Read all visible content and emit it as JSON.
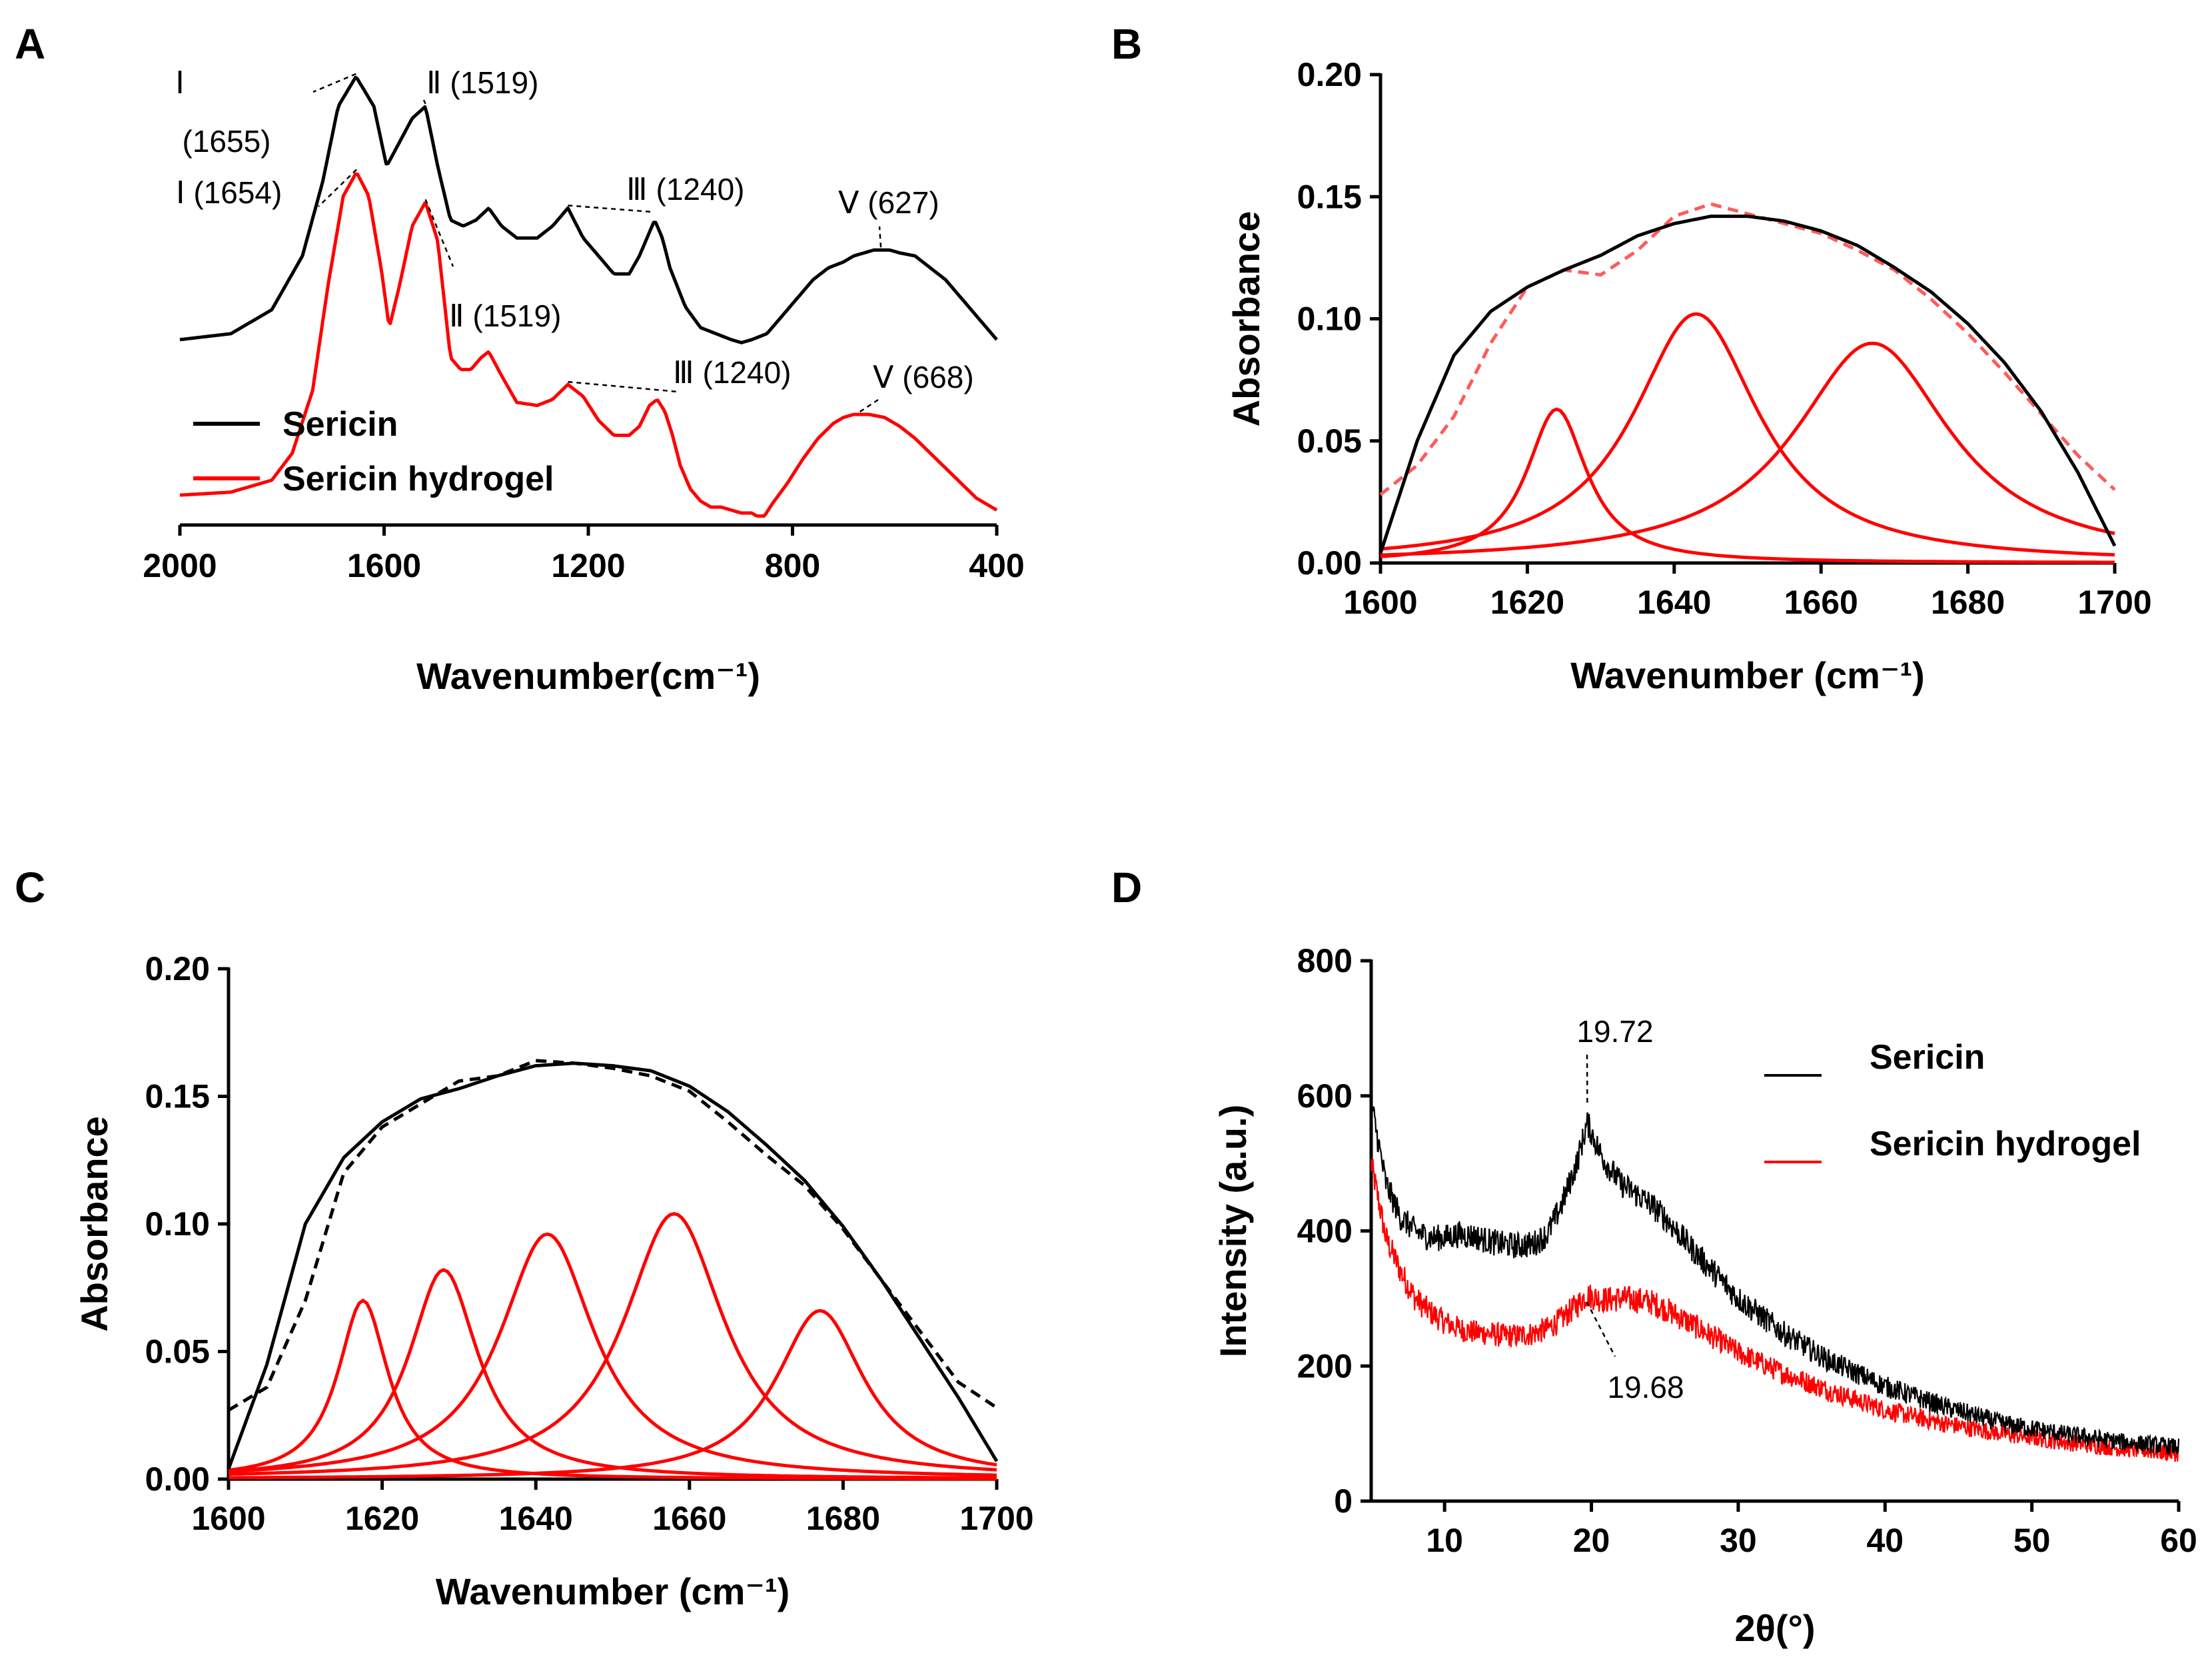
{
  "chart_data": [
    {
      "panel": "A",
      "type": "line",
      "xlabel": "Wavenumber(cm⁻¹)",
      "ylabel": "",
      "xlim": [
        2000,
        400
      ],
      "ylim": [
        0,
        1.6
      ],
      "xticks": [
        2000,
        1600,
        1200,
        800,
        400
      ],
      "xtick_labels": [
        "2000",
        "1600",
        "1200",
        "800",
        "400"
      ],
      "legend": [
        "Sericin",
        "Sericin hydrogel"
      ],
      "legend_position": "bottom-left",
      "series": [
        {
          "name": "Sericin",
          "color": "#000000",
          "x": [
            2000,
            1900,
            1820,
            1760,
            1720,
            1690,
            1655,
            1620,
            1595,
            1570,
            1545,
            1519,
            1495,
            1470,
            1445,
            1420,
            1395,
            1370,
            1340,
            1300,
            1270,
            1240,
            1210,
            1180,
            1150,
            1120,
            1100,
            1080,
            1070,
            1055,
            1040,
            1010,
            980,
            950,
            920,
            900,
            880,
            850,
            820,
            790,
            760,
            730,
            700,
            680,
            660,
            640,
            627,
            610,
            590,
            560,
            530,
            500,
            470,
            440,
            420,
            400
          ],
          "y": [
            0.62,
            0.64,
            0.72,
            0.9,
            1.15,
            1.4,
            1.5,
            1.4,
            1.2,
            1.28,
            1.36,
            1.4,
            1.2,
            1.02,
            1.0,
            1.02,
            1.06,
            1.0,
            0.96,
            0.96,
            1.0,
            1.06,
            0.96,
            0.9,
            0.84,
            0.84,
            0.9,
            0.98,
            1.02,
            0.96,
            0.86,
            0.73,
            0.66,
            0.64,
            0.62,
            0.61,
            0.62,
            0.64,
            0.7,
            0.76,
            0.82,
            0.86,
            0.88,
            0.9,
            0.91,
            0.92,
            0.92,
            0.92,
            0.91,
            0.9,
            0.86,
            0.82,
            0.76,
            0.7,
            0.66,
            0.62
          ]
        },
        {
          "name": "Sericin hydrogel",
          "color": "#ff0000",
          "x": [
            2000,
            1900,
            1820,
            1780,
            1740,
            1710,
            1680,
            1654,
            1630,
            1605,
            1590,
            1570,
            1545,
            1519,
            1495,
            1470,
            1450,
            1430,
            1410,
            1395,
            1370,
            1340,
            1300,
            1270,
            1240,
            1210,
            1180,
            1150,
            1120,
            1100,
            1080,
            1065,
            1050,
            1035,
            1020,
            1000,
            980,
            960,
            940,
            920,
            900,
            880,
            870,
            855,
            840,
            810,
            780,
            750,
            720,
            700,
            680,
            668,
            650,
            620,
            590,
            560,
            530,
            500,
            470,
            440,
            400
          ],
          "y": [
            0.1,
            0.11,
            0.15,
            0.24,
            0.45,
            0.8,
            1.1,
            1.18,
            1.1,
            0.85,
            0.66,
            0.8,
            1.0,
            1.08,
            0.95,
            0.56,
            0.52,
            0.52,
            0.56,
            0.58,
            0.5,
            0.41,
            0.4,
            0.42,
            0.47,
            0.43,
            0.35,
            0.3,
            0.3,
            0.33,
            0.4,
            0.42,
            0.38,
            0.3,
            0.2,
            0.12,
            0.08,
            0.06,
            0.06,
            0.05,
            0.04,
            0.04,
            0.03,
            0.03,
            0.07,
            0.14,
            0.22,
            0.29,
            0.34,
            0.36,
            0.37,
            0.37,
            0.37,
            0.36,
            0.33,
            0.29,
            0.24,
            0.19,
            0.14,
            0.09,
            0.05
          ]
        }
      ],
      "annotations": [
        {
          "text": "Ⅰ",
          "x": 1655,
          "series": "Sericin"
        },
        {
          "text": "(1655)",
          "x": 1655,
          "series": "Sericin"
        },
        {
          "text": "Ⅱ (1519)",
          "x": 1519,
          "series": "Sericin"
        },
        {
          "text": "Ⅲ (1240)",
          "x": 1240,
          "series": "Sericin"
        },
        {
          "text": "Ⅴ (627)",
          "x": 627,
          "series": "Sericin"
        },
        {
          "text": "Ⅰ (1654)",
          "x": 1654,
          "series": "Sericin hydrogel"
        },
        {
          "text": "Ⅱ (1519)",
          "x": 1519,
          "series": "Sericin hydrogel"
        },
        {
          "text": "Ⅲ (1240)",
          "x": 1240,
          "series": "Sericin hydrogel"
        },
        {
          "text": "Ⅴ (668)",
          "x": 668,
          "series": "Sericin hydrogel"
        }
      ]
    },
    {
      "panel": "B",
      "type": "line",
      "xlabel": "Wavenumber (cm⁻¹)",
      "ylabel": "Absorbance",
      "xlim": [
        1600,
        1700
      ],
      "ylim": [
        0,
        0.2
      ],
      "xticks": [
        1600,
        1620,
        1640,
        1660,
        1680,
        1700
      ],
      "xtick_labels": [
        "1600",
        "1620",
        "1640",
        "1660",
        "1680",
        "1700"
      ],
      "yticks": [
        0,
        0.05,
        0.1,
        0.15,
        0.2
      ],
      "ytick_labels": [
        "0.00",
        "0.05",
        "0.10",
        "0.15",
        "0.20"
      ],
      "measured": {
        "name": "Measured spectrum",
        "color": "#000000",
        "x": [
          1600,
          1605,
          1610,
          1615,
          1620,
          1625,
          1630,
          1635,
          1640,
          1645,
          1650,
          1655,
          1660,
          1665,
          1670,
          1675,
          1680,
          1685,
          1690,
          1695,
          1700
        ],
        "y": [
          0.004,
          0.05,
          0.085,
          0.103,
          0.113,
          0.12,
          0.126,
          0.134,
          0.139,
          0.142,
          0.142,
          0.14,
          0.136,
          0.13,
          0.121,
          0.111,
          0.098,
          0.082,
          0.062,
          0.037,
          0.007
        ]
      },
      "fit_sum": {
        "name": "Fitted sum",
        "color": "#ff5a5a",
        "dashed": true,
        "x": [
          1600,
          1605,
          1610,
          1615,
          1620,
          1625,
          1630,
          1635,
          1640,
          1645,
          1650,
          1655,
          1660,
          1665,
          1670,
          1675,
          1680,
          1685,
          1690,
          1695,
          1700
        ],
        "y": [
          0.028,
          0.04,
          0.06,
          0.09,
          0.113,
          0.12,
          0.118,
          0.128,
          0.142,
          0.147,
          0.143,
          0.139,
          0.135,
          0.128,
          0.12,
          0.108,
          0.094,
          0.078,
          0.061,
          0.044,
          0.03
        ]
      },
      "components": [
        {
          "center": 1624,
          "height": 0.063,
          "hwhm": 5,
          "color": "#ff0000"
        },
        {
          "center": 1643,
          "height": 0.102,
          "hwhm": 10.5,
          "color": "#ff0000"
        },
        {
          "center": 1667,
          "height": 0.09,
          "hwhm": 13,
          "color": "#ff0000"
        }
      ]
    },
    {
      "panel": "C",
      "type": "line",
      "xlabel": "Wavenumber (cm⁻¹)",
      "ylabel": "Absorbance",
      "xlim": [
        1600,
        1700
      ],
      "ylim": [
        0,
        0.2
      ],
      "xticks": [
        1600,
        1620,
        1640,
        1660,
        1680,
        1700
      ],
      "xtick_labels": [
        "1600",
        "1620",
        "1640",
        "1660",
        "1680",
        "1700"
      ],
      "yticks": [
        0,
        0.05,
        0.1,
        0.15,
        0.2
      ],
      "ytick_labels": [
        "0.00",
        "0.05",
        "0.10",
        "0.15",
        "0.20"
      ],
      "measured": {
        "name": "Measured spectrum",
        "color": "#000000",
        "x": [
          1600,
          1605,
          1610,
          1615,
          1620,
          1625,
          1630,
          1635,
          1640,
          1645,
          1650,
          1655,
          1660,
          1665,
          1670,
          1675,
          1680,
          1685,
          1690,
          1695,
          1700
        ],
        "y": [
          0.004,
          0.045,
          0.1,
          0.126,
          0.14,
          0.149,
          0.153,
          0.158,
          0.162,
          0.163,
          0.162,
          0.16,
          0.154,
          0.144,
          0.131,
          0.117,
          0.099,
          0.078,
          0.055,
          0.032,
          0.007
        ]
      },
      "fit_sum": {
        "name": "Fitted sum",
        "color": "#000000",
        "dashed": true,
        "x": [
          1600,
          1605,
          1610,
          1615,
          1620,
          1625,
          1630,
          1635,
          1640,
          1645,
          1650,
          1655,
          1660,
          1665,
          1670,
          1675,
          1680,
          1685,
          1690,
          1695,
          1700
        ],
        "y": [
          0.027,
          0.036,
          0.07,
          0.12,
          0.138,
          0.147,
          0.156,
          0.158,
          0.164,
          0.163,
          0.161,
          0.158,
          0.152,
          0.14,
          0.127,
          0.115,
          0.098,
          0.078,
          0.058,
          0.038,
          0.028
        ]
      },
      "components": [
        {
          "center": 1617.5,
          "height": 0.07,
          "hwhm": 4,
          "color": "#ff0000"
        },
        {
          "center": 1628,
          "height": 0.082,
          "hwhm": 5.5,
          "color": "#ff0000"
        },
        {
          "center": 1641.5,
          "height": 0.096,
          "hwhm": 7.5,
          "color": "#ff0000"
        },
        {
          "center": 1658,
          "height": 0.104,
          "hwhm": 8,
          "color": "#ff0000"
        },
        {
          "center": 1677,
          "height": 0.066,
          "hwhm": 7,
          "color": "#ff0000"
        }
      ]
    },
    {
      "panel": "D",
      "type": "line",
      "xlabel": "2θ(°)",
      "ylabel": "Intensity (a.u.)",
      "xlim": [
        5,
        60
      ],
      "ylim": [
        0,
        800
      ],
      "xticks": [
        10,
        20,
        30,
        40,
        50,
        60
      ],
      "xtick_labels": [
        "10",
        "20",
        "30",
        "40",
        "50",
        "60"
      ],
      "yticks": [
        0,
        200,
        400,
        600,
        800
      ],
      "ytick_labels": [
        "0",
        "200",
        "400",
        "600",
        "800"
      ],
      "legend": [
        "Sericin",
        "Sericin hydrogel"
      ],
      "legend_position": "top-right",
      "series": [
        {
          "name": "Sericin",
          "color": "#000000",
          "x": [
            5,
            6,
            7,
            8,
            9,
            10,
            11,
            12,
            13,
            14,
            15,
            16,
            17,
            18,
            19,
            19.72,
            20.5,
            21,
            22,
            23,
            24,
            25,
            27,
            30,
            33,
            36,
            40,
            44,
            48,
            52,
            56,
            60
          ],
          "y": [
            590,
            470,
            420,
            400,
            390,
            390,
            395,
            392,
            385,
            380,
            378,
            380,
            395,
            440,
            500,
            560,
            520,
            500,
            470,
            455,
            440,
            420,
            370,
            300,
            250,
            210,
            170,
            140,
            115,
            100,
            88,
            80
          ],
          "noise": 20
        },
        {
          "name": "Sericin hydrogel",
          "color": "#ff0000",
          "x": [
            5,
            6,
            7,
            8,
            9,
            10,
            11,
            12,
            13,
            14,
            15,
            16,
            17,
            18,
            19,
            19.68,
            20.5,
            21,
            22,
            23,
            24,
            25,
            27,
            30,
            33,
            36,
            40,
            44,
            48,
            52,
            56,
            60
          ],
          "y": [
            500,
            390,
            340,
            300,
            280,
            265,
            255,
            250,
            248,
            245,
            245,
            248,
            255,
            270,
            290,
            305,
            300,
            298,
            300,
            298,
            295,
            285,
            260,
            220,
            190,
            165,
            135,
            115,
            100,
            88,
            78,
            70
          ],
          "noise": 20
        }
      ],
      "annotations": [
        {
          "text": "19.72",
          "x": 19.72,
          "series": "Sericin"
        },
        {
          "text": "19.68",
          "x": 19.68,
          "series": "Sericin hydrogel"
        }
      ]
    }
  ]
}
